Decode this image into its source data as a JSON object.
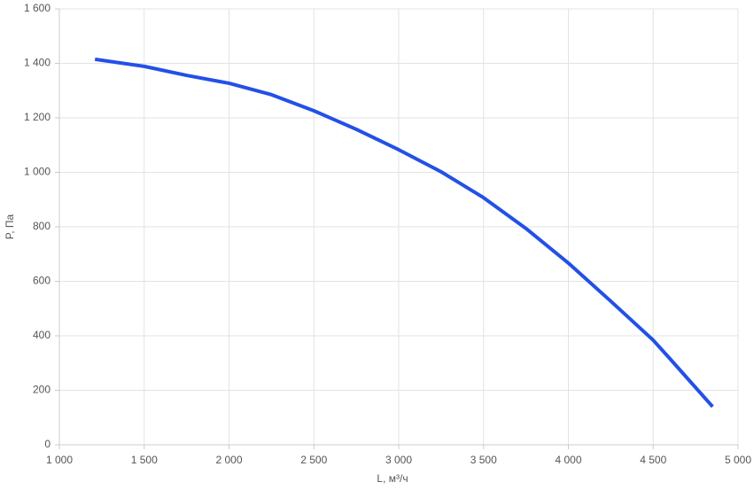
{
  "chart_data": {
    "type": "line",
    "x_label": "L, м³/ч",
    "y_label": "P, Па",
    "x": [
      1210,
      1500,
      1750,
      2000,
      2250,
      2500,
      2750,
      3000,
      3250,
      3500,
      3750,
      4000,
      4250,
      4500,
      4600,
      4850
    ],
    "values": [
      1415,
      1389,
      1356,
      1327,
      1285,
      1226,
      1158,
      1083,
      1002,
      907,
      794,
      667,
      527,
      384,
      315,
      140
    ],
    "color": "#2350e6",
    "xlim": [
      1000,
      5000
    ],
    "xticks": [
      {
        "value": 1000,
        "label": "1 000"
      },
      {
        "value": 1500,
        "label": "1 500"
      },
      {
        "value": 2000,
        "label": "2 000"
      },
      {
        "value": 2500,
        "label": "2 500"
      },
      {
        "value": 3000,
        "label": "3 000"
      },
      {
        "value": 3500,
        "label": "3 500"
      },
      {
        "value": 4000,
        "label": "4 000"
      },
      {
        "value": 4500,
        "label": "4 500"
      },
      {
        "value": 5000,
        "label": "5 000"
      }
    ],
    "ylim": [
      0,
      1600
    ],
    "yticks": [
      0,
      200,
      400,
      600,
      800,
      {
        "value": 1000,
        "label": "1 000"
      },
      {
        "value": 1200,
        "label": "1 200"
      },
      {
        "value": 1400,
        "label": "1 400"
      },
      {
        "value": 1600,
        "label": "1 600"
      }
    ],
    "grid": true
  }
}
